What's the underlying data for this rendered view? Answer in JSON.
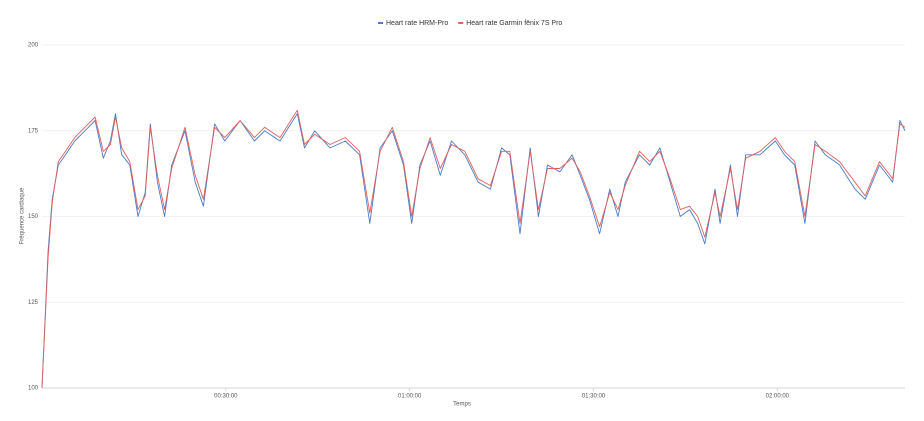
{
  "chart_data": {
    "type": "line",
    "x_label": "Temps",
    "y_label": "Fréquence cardiaque",
    "x": [
      0,
      60,
      100,
      160,
      230,
      320,
      420,
      520,
      600,
      670,
      720,
      780,
      860,
      940,
      1010,
      1060,
      1130,
      1200,
      1270,
      1400,
      1500,
      1580,
      1690,
      1790,
      1940,
      2080,
      2180,
      2330,
      2500,
      2570,
      2670,
      2820,
      2970,
      3110,
      3210,
      3310,
      3430,
      3540,
      3620,
      3700,
      3800,
      3900,
      4010,
      4140,
      4270,
      4390,
      4500,
      4580,
      4680,
      4780,
      4860,
      4950,
      5070,
      5190,
      5270,
      5360,
      5460,
      5560,
      5640,
      5710,
      5850,
      5950,
      6050,
      6150,
      6250,
      6340,
      6420,
      6490,
      6590,
      6640,
      6740,
      6810,
      6890,
      7030,
      7180,
      7270,
      7370,
      7470,
      7570,
      7670,
      7810,
      7960,
      8060,
      8200,
      8330,
      8400,
      8450
    ],
    "series": [
      {
        "name": "Heart rate HRM-Pro",
        "color": "#4a7cc9",
        "values": [
          100,
          140,
          155,
          165,
          168,
          172,
          175,
          178,
          167,
          172,
          180,
          168,
          165,
          150,
          157,
          177,
          160,
          150,
          165,
          175,
          160,
          153,
          177,
          172,
          178,
          172,
          175,
          172,
          180,
          170,
          175,
          170,
          172,
          168,
          148,
          170,
          175,
          165,
          148,
          165,
          172,
          162,
          172,
          168,
          160,
          158,
          170,
          168,
          145,
          170,
          150,
          165,
          163,
          168,
          162,
          155,
          145,
          158,
          150,
          160,
          168,
          165,
          170,
          160,
          150,
          152,
          148,
          142,
          158,
          148,
          165,
          150,
          168,
          168,
          172,
          168,
          165,
          148,
          172,
          168,
          165,
          158,
          155,
          165,
          160,
          178,
          175
        ]
      },
      {
        "name": "Heart rate Garmin fēnix 7S Pro",
        "color": "#e0605e",
        "values": [
          100,
          138,
          154,
          166,
          169,
          173,
          176,
          179,
          169,
          171,
          179,
          170,
          166,
          152,
          156,
          176,
          162,
          152,
          164,
          176,
          162,
          155,
          176,
          173,
          178,
          173,
          176,
          173,
          181,
          171,
          174,
          171,
          173,
          169,
          151,
          169,
          176,
          166,
          150,
          164,
          173,
          164,
          171,
          169,
          161,
          159,
          169,
          169,
          148,
          169,
          152,
          164,
          164,
          167,
          163,
          156,
          147,
          157,
          152,
          159,
          169,
          166,
          169,
          161,
          152,
          153,
          150,
          144,
          157,
          150,
          164,
          152,
          167,
          169,
          173,
          169,
          166,
          150,
          171,
          169,
          166,
          160,
          156,
          166,
          161,
          177,
          176
        ]
      }
    ],
    "xlim": [
      0,
      8450
    ],
    "xticks": [
      {
        "value": 1800,
        "label": "00:30:00"
      },
      {
        "value": 3600,
        "label": "01:00:00"
      },
      {
        "value": 5400,
        "label": "01:30:00"
      },
      {
        "value": 7200,
        "label": "02:00:00"
      }
    ],
    "ylim": [
      100,
      200
    ],
    "yticks": [
      100,
      125,
      150,
      175,
      200
    ],
    "grid": true,
    "legend": "top"
  }
}
